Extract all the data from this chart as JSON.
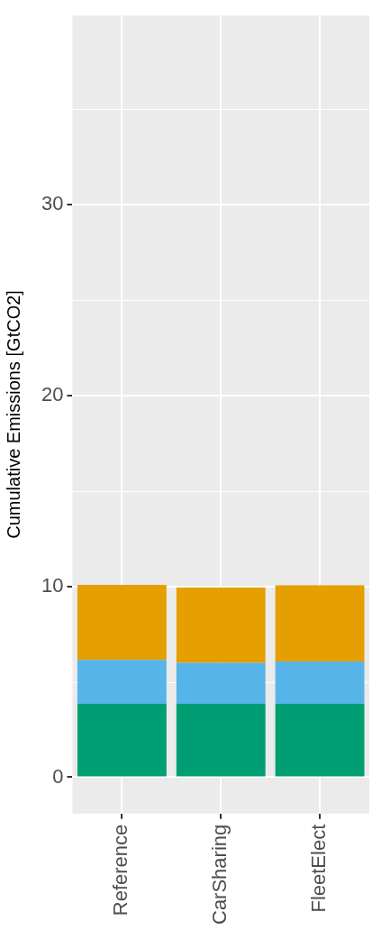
{
  "chart_data": {
    "type": "bar",
    "ylabel": "Cumulative Emissions [GtCO2]",
    "categories": [
      "Reference",
      "CarSharing",
      "FleetElect"
    ],
    "stacked": true,
    "series": [
      {
        "color": "#009e73",
        "values": [
          3.85,
          3.85,
          3.85
        ]
      },
      {
        "color": "#56b4e9",
        "values": [
          2.3,
          2.14,
          2.22
        ]
      },
      {
        "color": "#e69f00",
        "values": [
          3.93,
          3.95,
          3.98
        ]
      }
    ],
    "ylim": [
      -1.9,
      39.9
    ],
    "yticks": [
      0,
      10,
      20,
      30
    ],
    "grid": true
  }
}
